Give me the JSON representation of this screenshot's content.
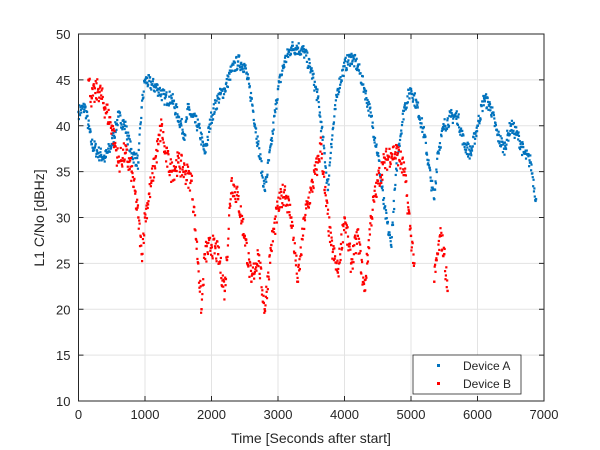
{
  "chart_data": {
    "type": "scatter",
    "title": "",
    "xlabel": "Time [Seconds after start]",
    "ylabel": "L1 C/No [dBHz]",
    "xlim": [
      0,
      7000
    ],
    "ylim": [
      10,
      50
    ],
    "xticks": [
      "0",
      "1000",
      "2000",
      "3000",
      "4000",
      "5000",
      "6000",
      "7000"
    ],
    "yticks": [
      "10",
      "15",
      "20",
      "25",
      "30",
      "35",
      "40",
      "45",
      "50"
    ],
    "grid": true,
    "legend_position": "bottom-right",
    "series": [
      {
        "name": "Device A",
        "color": "#0072BD",
        "x": [
          0,
          100,
          200,
          300,
          400,
          500,
          600,
          700,
          800,
          900,
          950,
          1000,
          1100,
          1200,
          1300,
          1400,
          1500,
          1600,
          1650,
          1700,
          1800,
          1900,
          2000,
          2100,
          2200,
          2300,
          2400,
          2500,
          2600,
          2700,
          2800,
          2900,
          3000,
          3100,
          3200,
          3300,
          3400,
          3500,
          3600,
          3700,
          3750,
          3800,
          3900,
          4000,
          4100,
          4200,
          4300,
          4400,
          4500,
          4600,
          4700,
          4800,
          4900,
          5000,
          5100,
          5200,
          5300,
          5350,
          5400,
          5500,
          5600,
          5700,
          5800,
          5900,
          6000,
          6100,
          6200,
          6300,
          6400,
          6500,
          6600,
          6700,
          6800,
          6880
        ],
        "y": [
          41.5,
          42,
          38,
          37,
          36.5,
          38,
          41,
          40,
          37,
          36,
          42,
          45,
          44.5,
          44,
          43,
          43,
          41,
          39,
          42,
          41,
          40,
          37,
          41,
          43,
          44,
          46,
          47,
          46.5,
          43,
          38,
          33,
          38,
          44,
          47,
          48.5,
          48.5,
          48,
          46,
          43,
          37,
          33,
          38,
          44,
          46.5,
          47.5,
          46.5,
          44,
          41,
          37,
          31,
          27,
          37,
          42,
          44,
          42,
          39,
          34,
          32,
          37,
          40,
          41,
          41,
          38,
          37,
          40,
          43,
          42,
          39,
          37.5,
          40,
          39,
          37,
          36,
          32
        ]
      },
      {
        "name": "Device B",
        "color": "#FF0000",
        "x": [
          150,
          200,
          300,
          400,
          500,
          600,
          700,
          800,
          900,
          950,
          1000,
          1100,
          1200,
          1250,
          1300,
          1400,
          1500,
          1600,
          1700,
          1800,
          1850,
          1900,
          2000,
          2100,
          2200,
          2300,
          2400,
          2500,
          2600,
          2700,
          2800,
          2900,
          3000,
          3100,
          3200,
          3300,
          3400,
          3500,
          3600,
          3650,
          3700,
          3800,
          3900,
          4000,
          4100,
          4200,
          4300,
          4400,
          4500,
          4600,
          4700,
          4800,
          4900,
          5000,
          5050,
          null,
          5350,
          5400,
          5450,
          5500,
          5550
        ],
        "y": [
          45,
          43,
          44,
          42,
          40,
          36,
          37,
          35,
          30,
          26,
          30,
          34,
          38,
          40,
          37,
          35,
          36,
          35,
          34,
          25,
          20,
          26,
          27,
          26,
          22,
          34,
          32,
          28,
          23,
          26,
          20,
          27,
          31,
          33,
          30,
          23,
          30,
          33,
          36,
          38,
          33,
          27,
          24,
          30,
          25,
          28,
          22,
          30,
          34,
          36,
          37,
          37,
          35,
          28,
          25,
          null,
          23,
          26,
          28,
          26,
          22
        ]
      }
    ]
  }
}
